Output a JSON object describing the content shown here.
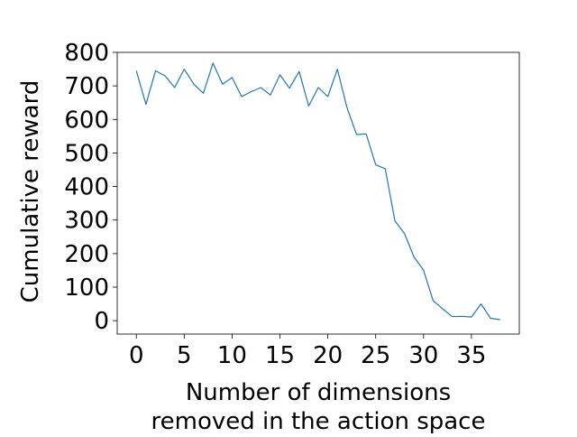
{
  "chart_data": {
    "type": "line",
    "title": "",
    "xlabel": "Number of dimensions removed in the action space",
    "xlabel_lines": [
      "Number of dimensions",
      "removed in the action space"
    ],
    "ylabel": "Cumulative reward",
    "xlim": [
      -2,
      40
    ],
    "ylim": [
      -40,
      800
    ],
    "xticks": [
      0,
      5,
      10,
      15,
      20,
      25,
      30,
      35
    ],
    "yticks": [
      0,
      100,
      200,
      300,
      400,
      500,
      600,
      700,
      800
    ],
    "grid": false,
    "legend": "none",
    "series": [
      {
        "color": "#1f77b4",
        "x": [
          0,
          1,
          2,
          3,
          4,
          5,
          6,
          7,
          8,
          9,
          10,
          11,
          12,
          13,
          14,
          15,
          16,
          17,
          18,
          19,
          20,
          21,
          22,
          23,
          24,
          25,
          26,
          27,
          28,
          29,
          30,
          31,
          32,
          33,
          34,
          35,
          36,
          37,
          38
        ],
        "y": [
          745,
          645,
          745,
          730,
          695,
          750,
          705,
          678,
          768,
          705,
          725,
          668,
          683,
          695,
          673,
          733,
          693,
          743,
          640,
          695,
          668,
          750,
          635,
          555,
          557,
          465,
          453,
          298,
          260,
          190,
          150,
          60,
          35,
          12,
          13,
          11,
          50,
          7,
          3
        ]
      }
    ]
  }
}
